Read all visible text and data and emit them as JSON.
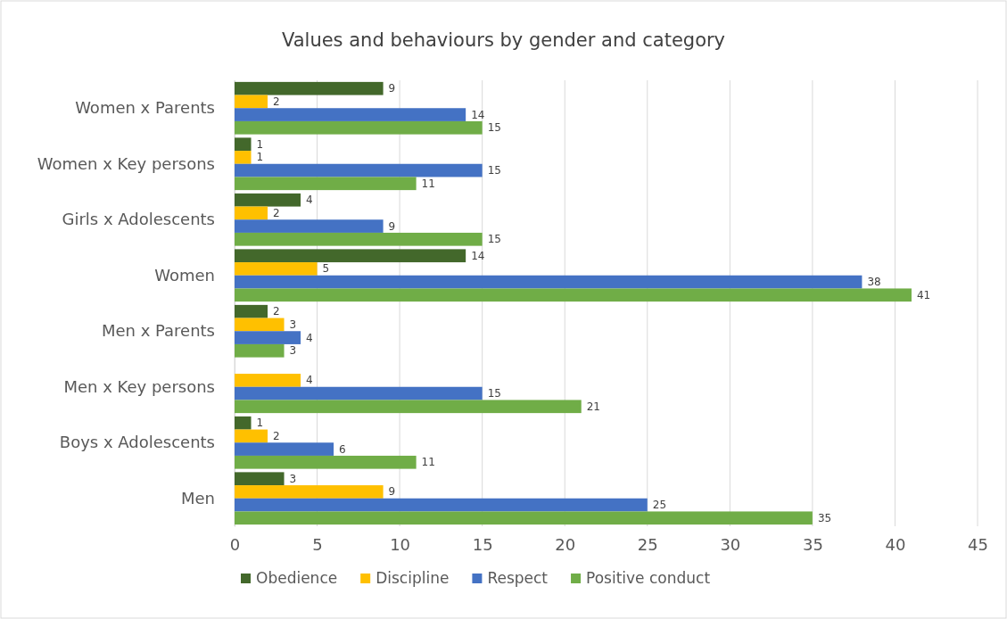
{
  "chart_data": {
    "type": "bar",
    "orientation": "horizontal",
    "title": "Values and behaviours by gender and category",
    "categories": [
      "Women x Parents",
      "Women x Key persons",
      "Girls x Adolescents",
      "Women",
      "Men x Parents",
      "Men x Key persons",
      "Boys x Adolescents",
      "Men"
    ],
    "series": [
      {
        "name": "Obedience",
        "color": "#43682b",
        "values": [
          9,
          1,
          4,
          14,
          2,
          null,
          1,
          3
        ]
      },
      {
        "name": "Discipline",
        "color": "#ffc000",
        "values": [
          2,
          1,
          2,
          5,
          3,
          4,
          2,
          9
        ]
      },
      {
        "name": "Respect",
        "color": "#4472c4",
        "values": [
          14,
          15,
          9,
          38,
          4,
          15,
          6,
          25
        ]
      },
      {
        "name": "Positive conduct",
        "color": "#70ad47",
        "values": [
          15,
          11,
          15,
          41,
          3,
          21,
          11,
          35
        ]
      }
    ],
    "xlim": [
      0,
      45
    ],
    "xticks": [
      0,
      5,
      10,
      15,
      20,
      25,
      30,
      35,
      40,
      45
    ],
    "grid": "x",
    "legend": "bottom",
    "data_labels": true
  }
}
